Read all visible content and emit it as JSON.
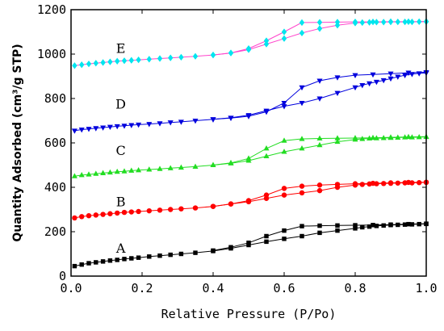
{
  "chart_data": {
    "type": "line",
    "xlabel": "Relative Pressure (P/Po)",
    "ylabel": "Quantity Adsorbed (cm³/g STP)",
    "xlim": [
      0.0,
      1.0
    ],
    "ylim": [
      0,
      1200
    ],
    "xticks": [
      "0.0",
      "0.2",
      "0.4",
      "0.6",
      "0.8",
      "1.0"
    ],
    "yticks": [
      "0",
      "200",
      "400",
      "600",
      "800",
      "1000",
      "1200"
    ],
    "grid": false,
    "series": [
      {
        "name": "A",
        "color": "#000000",
        "marker": "square",
        "adsorption": {
          "x": [
            0.01,
            0.03,
            0.05,
            0.07,
            0.09,
            0.11,
            0.13,
            0.15,
            0.17,
            0.19,
            0.22,
            0.25,
            0.28,
            0.31,
            0.35,
            0.4,
            0.45,
            0.5,
            0.55,
            0.6,
            0.65,
            0.7,
            0.75,
            0.8,
            0.82,
            0.84,
            0.86,
            0.88,
            0.9,
            0.92,
            0.94,
            0.96,
            0.98,
            1.0
          ],
          "y": [
            45,
            52,
            58,
            62,
            66,
            70,
            73,
            77,
            80,
            83,
            88,
            92,
            96,
            100,
            105,
            113,
            125,
            140,
            155,
            168,
            180,
            195,
            205,
            215,
            220,
            223,
            226,
            228,
            230,
            231,
            232,
            233,
            234,
            235
          ]
        },
        "desorption": {
          "x": [
            1.0,
            0.95,
            0.9,
            0.85,
            0.8,
            0.75,
            0.7,
            0.65,
            0.6,
            0.55,
            0.5,
            0.45,
            0.4
          ],
          "y": [
            236,
            234,
            232,
            230,
            229,
            228,
            227,
            225,
            205,
            180,
            150,
            130,
            115
          ]
        },
        "label_pos": [
          0.14,
          105
        ]
      },
      {
        "name": "B",
        "color": "#ff0000",
        "marker": "circle",
        "adsorption": {
          "x": [
            0.01,
            0.03,
            0.05,
            0.07,
            0.09,
            0.11,
            0.13,
            0.15,
            0.17,
            0.19,
            0.22,
            0.25,
            0.28,
            0.31,
            0.35,
            0.4,
            0.45,
            0.5,
            0.55,
            0.6,
            0.65,
            0.7,
            0.75,
            0.8,
            0.82,
            0.84,
            0.86,
            0.88,
            0.9,
            0.92,
            0.94,
            0.96,
            0.98,
            1.0
          ],
          "y": [
            262,
            268,
            272,
            275,
            278,
            281,
            284,
            287,
            289,
            291,
            294,
            297,
            300,
            303,
            307,
            314,
            325,
            335,
            350,
            365,
            375,
            385,
            400,
            410,
            413,
            415,
            416,
            417,
            418,
            419,
            420,
            420,
            421,
            422
          ]
        },
        "desorption": {
          "x": [
            1.0,
            0.95,
            0.9,
            0.85,
            0.8,
            0.75,
            0.7,
            0.65,
            0.6,
            0.55,
            0.5,
            0.45,
            0.4
          ],
          "y": [
            423,
            422,
            420,
            418,
            416,
            413,
            410,
            405,
            395,
            365,
            340,
            325,
            314
          ]
        },
        "label_pos": [
          0.14,
          315
        ]
      },
      {
        "name": "C",
        "color": "#22dd22",
        "marker": "triangle-up",
        "adsorption": {
          "x": [
            0.01,
            0.03,
            0.05,
            0.07,
            0.09,
            0.11,
            0.13,
            0.15,
            0.17,
            0.19,
            0.22,
            0.25,
            0.28,
            0.31,
            0.35,
            0.4,
            0.45,
            0.5,
            0.55,
            0.6,
            0.65,
            0.7,
            0.75,
            0.8,
            0.82,
            0.84,
            0.86,
            0.88,
            0.9,
            0.92,
            0.94,
            0.96,
            0.98,
            1.0
          ],
          "y": [
            450,
            455,
            458,
            461,
            464,
            467,
            470,
            472,
            475,
            477,
            480,
            483,
            486,
            489,
            493,
            500,
            508,
            520,
            540,
            560,
            575,
            590,
            605,
            615,
            618,
            620,
            621,
            622,
            623,
            624,
            625,
            625,
            626,
            627
          ]
        },
        "desorption": {
          "x": [
            1.0,
            0.95,
            0.9,
            0.85,
            0.8,
            0.75,
            0.7,
            0.65,
            0.6,
            0.55,
            0.5,
            0.45,
            0.4
          ],
          "y": [
            628,
            627,
            625,
            623,
            622,
            621,
            620,
            618,
            610,
            575,
            530,
            510,
            500
          ]
        },
        "label_pos": [
          0.14,
          545
        ]
      },
      {
        "name": "D",
        "color": "#0000dd",
        "marker": "triangle-down",
        "adsorption": {
          "x": [
            0.01,
            0.03,
            0.05,
            0.07,
            0.09,
            0.11,
            0.13,
            0.15,
            0.17,
            0.19,
            0.22,
            0.25,
            0.28,
            0.31,
            0.35,
            0.4,
            0.45,
            0.5,
            0.55,
            0.6,
            0.65,
            0.7,
            0.75,
            0.8,
            0.82,
            0.84,
            0.86,
            0.88,
            0.9,
            0.92,
            0.94,
            0.96,
            0.98,
            1.0
          ],
          "y": [
            655,
            660,
            663,
            666,
            669,
            672,
            675,
            677,
            680,
            682,
            685,
            688,
            692,
            695,
            700,
            706,
            713,
            725,
            745,
            765,
            780,
            800,
            825,
            850,
            860,
            868,
            875,
            882,
            890,
            898,
            905,
            910,
            913,
            915
          ]
        },
        "desorption": {
          "x": [
            1.0,
            0.95,
            0.9,
            0.85,
            0.8,
            0.75,
            0.7,
            0.65,
            0.6,
            0.55,
            0.5,
            0.45,
            0.4
          ],
          "y": [
            918,
            916,
            912,
            908,
            905,
            895,
            880,
            850,
            780,
            740,
            720,
            712,
            706
          ]
        },
        "label_pos": [
          0.14,
          755
        ]
      },
      {
        "name": "E",
        "color": "#00e5ee",
        "line_color": "#ff44cc",
        "marker": "diamond",
        "adsorption": {
          "x": [
            0.01,
            0.03,
            0.05,
            0.07,
            0.09,
            0.11,
            0.13,
            0.15,
            0.17,
            0.19,
            0.22,
            0.25,
            0.28,
            0.31,
            0.35,
            0.4,
            0.45,
            0.5,
            0.55,
            0.6,
            0.65,
            0.7,
            0.75,
            0.8,
            0.82,
            0.84,
            0.86,
            0.88,
            0.9,
            0.92,
            0.94,
            0.96,
            0.98,
            1.0
          ],
          "y": [
            948,
            952,
            956,
            959,
            962,
            965,
            968,
            970,
            972,
            974,
            977,
            980,
            983,
            986,
            990,
            996,
            1005,
            1020,
            1045,
            1070,
            1095,
            1115,
            1130,
            1140,
            1142,
            1143,
            1144,
            1144,
            1145,
            1145,
            1145,
            1145,
            1146,
            1146
          ]
        },
        "desorption": {
          "x": [
            1.0,
            0.95,
            0.9,
            0.85,
            0.8,
            0.75,
            0.7,
            0.65,
            0.6,
            0.55,
            0.5,
            0.45,
            0.4
          ],
          "y": [
            1147,
            1146,
            1146,
            1145,
            1145,
            1144,
            1143,
            1142,
            1100,
            1060,
            1025,
            1005,
            996
          ]
        },
        "label_pos": [
          0.14,
          1005
        ]
      }
    ]
  }
}
